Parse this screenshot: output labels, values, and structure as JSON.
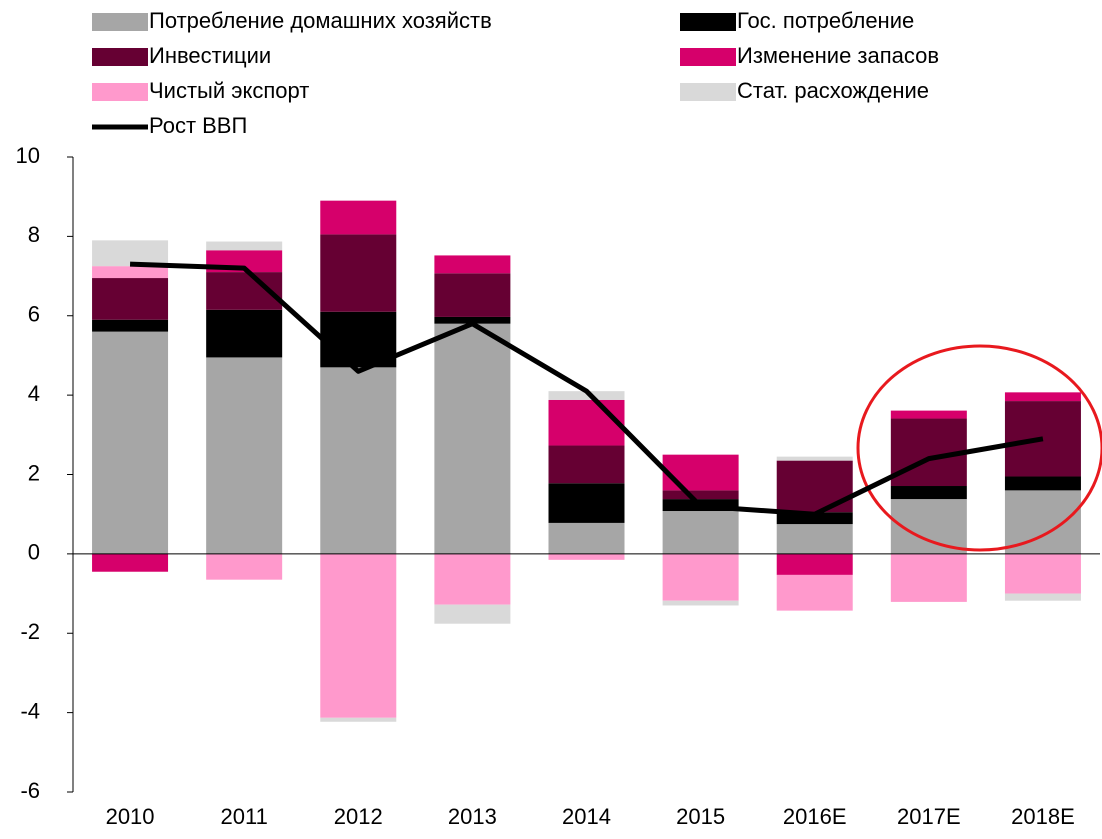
{
  "chart_data": {
    "type": "bar",
    "stacked": true,
    "categories": [
      "2010",
      "2011",
      "2012",
      "2013",
      "2014",
      "2015",
      "2016E",
      "2017E",
      "2018E"
    ],
    "series": [
      {
        "name": "Потребление домашних хозяйств",
        "color": "#a6a6a6",
        "values": [
          5.6,
          4.95,
          4.7,
          5.8,
          0.78,
          1.08,
          0.75,
          1.38,
          1.6
        ]
      },
      {
        "name": "Гос. потребление",
        "color": "#000000",
        "values": [
          0.3,
          1.2,
          1.4,
          0.17,
          1.0,
          0.3,
          0.3,
          0.33,
          0.35
        ]
      },
      {
        "name": "Инвестиции",
        "color": "#660033",
        "values": [
          1.05,
          0.95,
          1.95,
          1.1,
          0.95,
          0.22,
          1.3,
          1.7,
          1.9
        ]
      },
      {
        "name": "Изменение запасов",
        "color": "#d6006b",
        "values": [
          -0.45,
          0.55,
          0.85,
          0.45,
          1.15,
          0.9,
          -0.53,
          0.2,
          0.22
        ]
      },
      {
        "name": "Чистый экспорт",
        "color": "#ff99cc",
        "values": [
          0.3,
          -0.65,
          -4.13,
          -1.28,
          -0.15,
          -1.18,
          -0.9,
          -1.21,
          -1.0
        ]
      },
      {
        "name": "Стат. расхождение",
        "color": "#d9d9d9",
        "values": [
          0.65,
          0.22,
          -0.1,
          -0.48,
          0.22,
          -0.12,
          0.1,
          0,
          -0.18
        ]
      }
    ],
    "line": {
      "name": "Рост ВВП",
      "color": "#000000",
      "values": [
        7.3,
        7.2,
        4.6,
        5.8,
        4.1,
        1.2,
        1.0,
        2.4,
        2.9
      ]
    },
    "ylim": [
      -6,
      10
    ],
    "yticks": [
      -6,
      -4,
      -2,
      0,
      2,
      4,
      6,
      8,
      10
    ],
    "grid": false
  }
}
